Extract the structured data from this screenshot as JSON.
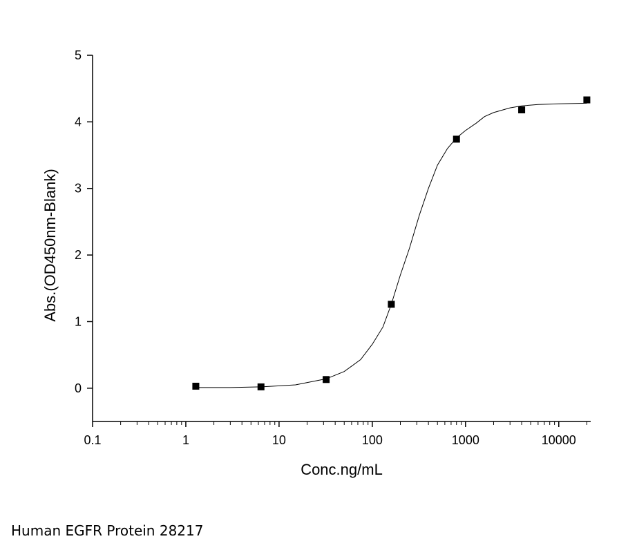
{
  "chart_data": {
    "type": "scatter",
    "title": "",
    "xlabel": "Conc.ng/mL",
    "ylabel": "Abs.(OD450nm-Blank)",
    "x_scale": "log",
    "xlim": [
      0.1,
      22000
    ],
    "ylim": [
      -0.5,
      5
    ],
    "x_ticks": [
      0.1,
      1,
      10,
      100,
      1000,
      10000
    ],
    "x_tick_labels": [
      "0.1",
      "1",
      "10",
      "100",
      "1000",
      "10000"
    ],
    "y_ticks": [
      0,
      1,
      2,
      3,
      4,
      5
    ],
    "y_tick_labels": [
      "0",
      "1",
      "2",
      "3",
      "4",
      "5"
    ],
    "grid": false,
    "legend": "none",
    "marker": "square",
    "color": "#000000",
    "series": [
      {
        "x": [
          1.28,
          6.4,
          32,
          160,
          800,
          4000,
          20000
        ],
        "y": [
          0.03,
          0.02,
          0.13,
          1.26,
          3.74,
          4.18,
          4.33
        ]
      }
    ],
    "fit_curve": {
      "x": [
        1.28,
        3,
        6.4,
        15,
        32,
        50,
        75,
        100,
        130,
        160,
        200,
        250,
        320,
        400,
        500,
        640,
        800,
        1000,
        1300,
        1600,
        2000,
        3000,
        4000,
        6000,
        10000,
        20000
      ],
      "y": [
        0.01,
        0.01,
        0.02,
        0.05,
        0.14,
        0.25,
        0.43,
        0.66,
        0.92,
        1.26,
        1.7,
        2.1,
        2.6,
        3.0,
        3.35,
        3.6,
        3.76,
        3.87,
        3.98,
        4.08,
        4.14,
        4.21,
        4.24,
        4.26,
        4.27,
        4.28
      ]
    }
  },
  "caption": "Human EGFR Protein 28217"
}
